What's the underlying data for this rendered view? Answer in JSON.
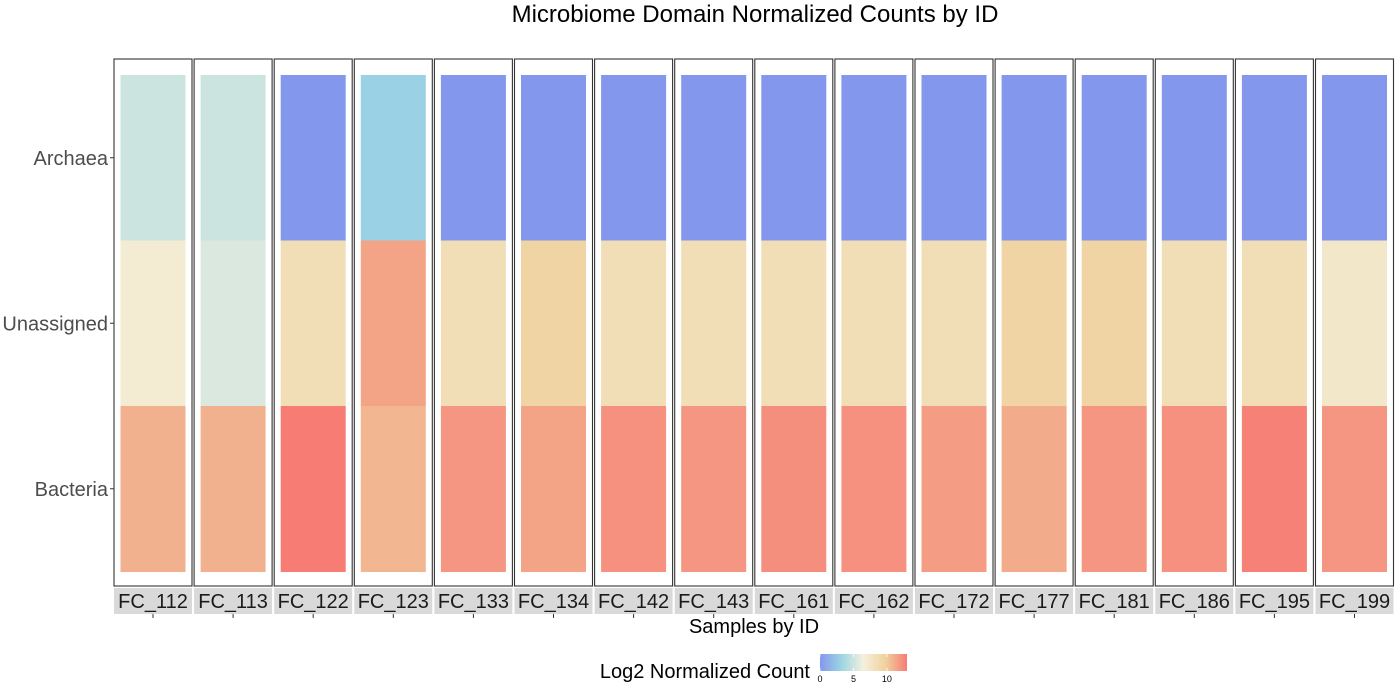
{
  "chart_data": {
    "type": "heatmap",
    "title": "Microbiome Domain Normalized Counts by ID",
    "xlabel": "Samples by ID",
    "ylabel": "",
    "legend": {
      "title": "Log2 Normalized Count",
      "position": "bottom",
      "ticks": [
        0,
        5,
        10
      ],
      "range": [
        0,
        13
      ],
      "colors": [
        "#8397ec",
        "#9dd6e4",
        "#f5f0dd",
        "#f0d29e",
        "#f67c74"
      ]
    },
    "rows": [
      "Archaea",
      "Unassigned",
      "Bacteria"
    ],
    "samples": [
      "FC_112",
      "FC_113",
      "FC_122",
      "FC_123",
      "FC_133",
      "FC_134",
      "FC_142",
      "FC_143",
      "FC_161",
      "FC_162",
      "FC_172",
      "FC_177",
      "FC_181",
      "FC_186",
      "FC_195",
      "FC_199"
    ],
    "values": {
      "Archaea": [
        5,
        5,
        0,
        3,
        0,
        0,
        0,
        0,
        0,
        0,
        0,
        0,
        0,
        0,
        0,
        0
      ],
      "Unassigned": [
        7,
        5.5,
        8.5,
        11.5,
        8.5,
        9.5,
        8.5,
        8.5,
        8.5,
        8.5,
        8.5,
        9.5,
        9.5,
        8.5,
        8.5,
        7.5
      ],
      "Bacteria": [
        11,
        11,
        13,
        10.8,
        12,
        11.5,
        12.2,
        12,
        12.3,
        12.2,
        11.8,
        11.2,
        12,
        12.2,
        12.8,
        12
      ]
    },
    "grid": false
  }
}
